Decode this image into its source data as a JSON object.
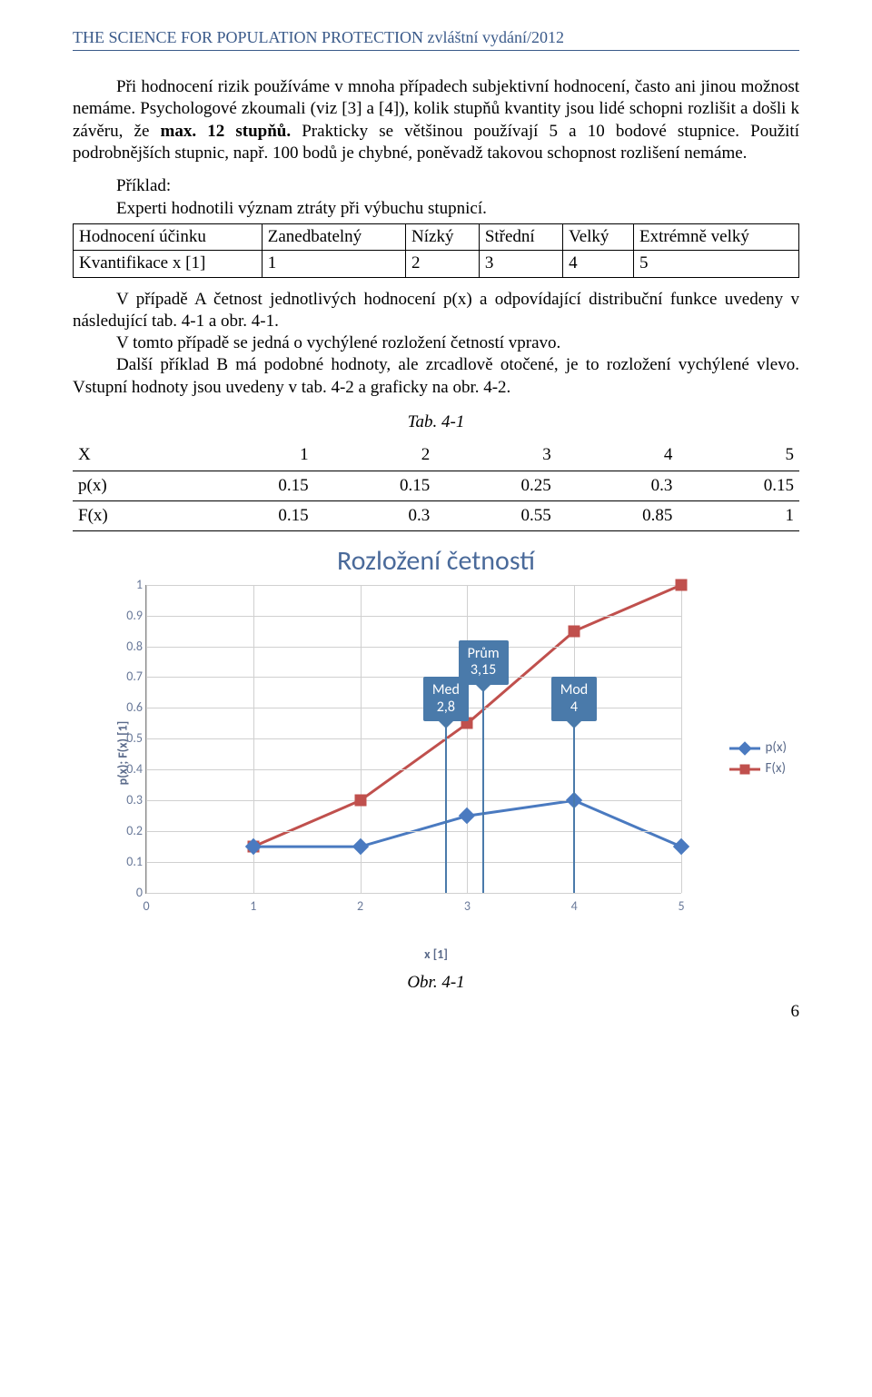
{
  "header": "THE SCIENCE FOR POPULATION PROTECTION zvláštní vydání/2012",
  "para1_html": "Při hodnocení rizik používáme v mnoha případech subjektivní hodnocení, často ani jinou možnost nemáme. Psychologové zkoumali (viz [3] a [4]), kolik stupňů kvantity jsou lidé schopni rozlišit a došli k závěru, že <b>max. 12 stupňů.</b> Prakticky se většinou používají 5 a 10 bodové stupnice. Použití podrobnějších stupnic, např. 100 bodů je chybné, poněvadž takovou schopnost rozlišení nemáme.",
  "example_lead1": "Příklad:",
  "example_lead2": "Experti hodnotili význam ztráty při výbuchu stupnicí.",
  "table1": {
    "rows": [
      [
        "Hodnocení účinku",
        "Zanedbatelný",
        "Nízký",
        "Střední",
        "Velký",
        "Extrémně velký"
      ],
      [
        "Kvantifikace x [1]",
        "1",
        "2",
        "3",
        "4",
        "5"
      ]
    ]
  },
  "para2a": "V případě A četnost jednotlivých hodnocení p(x) a odpovídající distribuční funkce uvedeny v následující tab. 4-1 a obr. 4-1.",
  "para2b": "V tomto případě se jedná o vychýlené rozložení četností vpravo.",
  "para2c": "Další příklad B má podobné hodnoty, ale zrcadlově otočené, je to rozložení vychýlené vlevo. Vstupní hodnoty jsou uvedeny v tab. 4-2 a graficky na obr. 4-2.",
  "tab_caption": "Tab. 4-1",
  "table2": {
    "rows": [
      [
        "X",
        "1",
        "2",
        "3",
        "4",
        "5"
      ],
      [
        "p(x)",
        "0.15",
        "0.15",
        "0.25",
        "0.3",
        "0.15"
      ],
      [
        "F(x)",
        "0.15",
        "0.3",
        "0.55",
        "0.85",
        "1"
      ]
    ]
  },
  "chart": {
    "title": "Rozložení četností",
    "ylabel": "p(x); F(x) [1]",
    "xlabel": "x [1]",
    "xlim": [
      0,
      5
    ],
    "ylim": [
      0,
      1
    ],
    "yticks": [
      0,
      0.1,
      0.2,
      0.3,
      0.4,
      0.5,
      0.6,
      0.7,
      0.8,
      0.9,
      1
    ],
    "xticks": [
      0,
      1,
      2,
      3,
      4,
      5
    ],
    "grid_color": "#d0d0d0",
    "series": {
      "px": {
        "label": "p(x)",
        "color": "#4a7ac0",
        "marker": "diamond",
        "x": [
          1,
          2,
          3,
          4,
          5
        ],
        "y": [
          0.15,
          0.15,
          0.25,
          0.3,
          0.15
        ]
      },
      "Fx": {
        "label": "F(x)",
        "color": "#c0504d",
        "marker": "square",
        "x": [
          1,
          2,
          3,
          4,
          5
        ],
        "y": [
          0.15,
          0.3,
          0.55,
          0.85,
          1.0
        ]
      }
    },
    "callouts": [
      {
        "label_l1": "Med",
        "label_l2": "2,8",
        "x": 2.8
      },
      {
        "label_l1": "Prům",
        "label_l2": "3,15",
        "x": 3.15
      },
      {
        "label_l1": "Mod",
        "label_l2": "4",
        "x": 4.0
      }
    ],
    "callout_bg": "#4a7aaa",
    "tick_font_color": "#6a7a9a"
  },
  "fig_caption": "Obr. 4-1",
  "page_num": "6"
}
